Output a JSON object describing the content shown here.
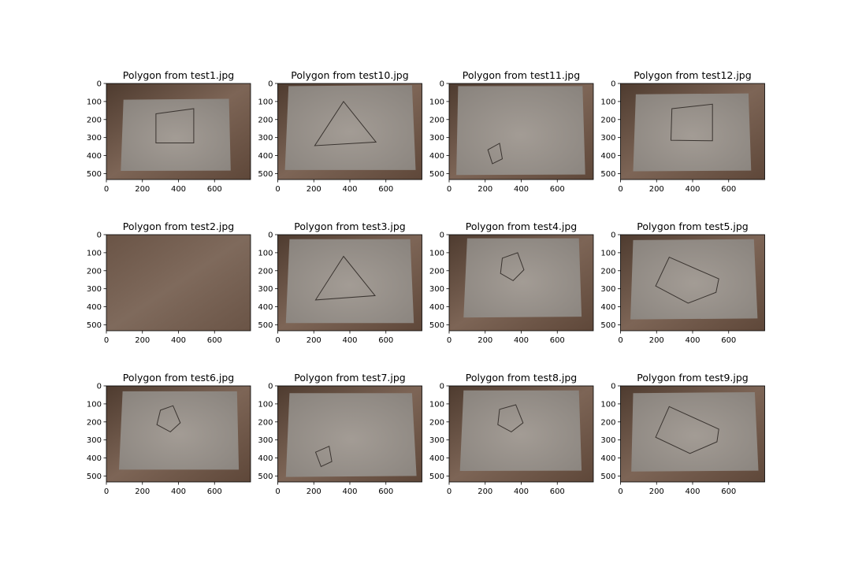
{
  "figure": {
    "layout": {
      "rows": 3,
      "cols": 4
    }
  },
  "axis": {
    "xticks": [
      "0",
      "200",
      "400",
      "600"
    ],
    "yticks": [
      "0",
      "100",
      "200",
      "300",
      "400",
      "500"
    ],
    "xlim": [
      0,
      800
    ],
    "ylim": [
      0,
      533
    ]
  },
  "colors": {
    "wood_dark": "#5a4436",
    "wood_mid": "#7a6253",
    "paper": "#9a938c",
    "paper_light": "#a49d96",
    "paper_dark": "#807a75",
    "polygon_line": "#3a3430"
  },
  "chart_data": [
    {
      "type": "image",
      "title": "Polygon from test1.jpg",
      "has_paper": true,
      "paper_corners": [
        [
          95,
          90
        ],
        [
          680,
          85
        ],
        [
          690,
          483
        ],
        [
          80,
          485
        ]
      ],
      "polygon": [
        [
          275,
          168
        ],
        [
          485,
          140
        ],
        [
          485,
          330
        ],
        [
          275,
          330
        ]
      ]
    },
    {
      "type": "image",
      "title": "Polygon from test10.jpg",
      "has_paper": true,
      "paper_corners": [
        [
          60,
          15
        ],
        [
          745,
          10
        ],
        [
          765,
          480
        ],
        [
          40,
          480
        ]
      ],
      "polygon": [
        [
          365,
          100
        ],
        [
          545,
          325
        ],
        [
          205,
          345
        ]
      ]
    },
    {
      "type": "image",
      "title": "Polygon from test11.jpg",
      "has_paper": true,
      "paper_corners": [
        [
          50,
          15
        ],
        [
          740,
          15
        ],
        [
          755,
          505
        ],
        [
          40,
          508
        ]
      ],
      "polygon": [
        [
          215,
          368
        ],
        [
          280,
          332
        ],
        [
          295,
          418
        ],
        [
          240,
          445
        ]
      ]
    },
    {
      "type": "image",
      "title": "Polygon from test12.jpg",
      "has_paper": true,
      "paper_corners": [
        [
          85,
          60
        ],
        [
          710,
          55
        ],
        [
          725,
          483
        ],
        [
          70,
          487
        ]
      ],
      "polygon": [
        [
          285,
          140
        ],
        [
          510,
          115
        ],
        [
          510,
          318
        ],
        [
          280,
          315
        ]
      ]
    },
    {
      "type": "image",
      "title": "Polygon from test2.jpg",
      "has_paper": false,
      "paper_corners": [],
      "polygon": []
    },
    {
      "type": "image",
      "title": "Polygon from test3.jpg",
      "has_paper": true,
      "paper_corners": [
        [
          65,
          25
        ],
        [
          735,
          25
        ],
        [
          755,
          490
        ],
        [
          45,
          490
        ]
      ],
      "polygon": [
        [
          365,
          120
        ],
        [
          540,
          338
        ],
        [
          210,
          362
        ]
      ]
    },
    {
      "type": "image",
      "title": "Polygon from test4.jpg",
      "has_paper": true,
      "paper_corners": [
        [
          100,
          20
        ],
        [
          720,
          20
        ],
        [
          735,
          455
        ],
        [
          80,
          460
        ]
      ],
      "polygon": [
        [
          295,
          130
        ],
        [
          380,
          100
        ],
        [
          415,
          195
        ],
        [
          355,
          255
        ],
        [
          285,
          215
        ]
      ]
    },
    {
      "type": "image",
      "title": "Polygon from test5.jpg",
      "has_paper": true,
      "paper_corners": [
        [
          70,
          30
        ],
        [
          740,
          25
        ],
        [
          760,
          465
        ],
        [
          55,
          470
        ]
      ],
      "polygon": [
        [
          270,
          125
        ],
        [
          545,
          245
        ],
        [
          530,
          320
        ],
        [
          375,
          380
        ],
        [
          195,
          285
        ]
      ]
    },
    {
      "type": "image",
      "title": "Polygon from test6.jpg",
      "has_paper": true,
      "paper_corners": [
        [
          90,
          30
        ],
        [
          725,
          30
        ],
        [
          735,
          465
        ],
        [
          70,
          465
        ]
      ],
      "polygon": [
        [
          300,
          135
        ],
        [
          370,
          110
        ],
        [
          410,
          205
        ],
        [
          355,
          255
        ],
        [
          280,
          215
        ]
      ]
    },
    {
      "type": "image",
      "title": "Polygon from test7.jpg",
      "has_paper": true,
      "paper_corners": [
        [
          65,
          40
        ],
        [
          745,
          40
        ],
        [
          770,
          500
        ],
        [
          45,
          505
        ]
      ],
      "polygon": [
        [
          210,
          368
        ],
        [
          285,
          335
        ],
        [
          300,
          420
        ],
        [
          240,
          448
        ]
      ]
    },
    {
      "type": "image",
      "title": "Polygon from test8.jpg",
      "has_paper": true,
      "paper_corners": [
        [
          80,
          25
        ],
        [
          720,
          25
        ],
        [
          735,
          470
        ],
        [
          60,
          472
        ]
      ],
      "polygon": [
        [
          280,
          130
        ],
        [
          370,
          105
        ],
        [
          410,
          205
        ],
        [
          345,
          255
        ],
        [
          270,
          215
        ]
      ]
    },
    {
      "type": "image",
      "title": "Polygon from test9.jpg",
      "has_paper": true,
      "paper_corners": [
        [
          70,
          40
        ],
        [
          745,
          35
        ],
        [
          765,
          470
        ],
        [
          60,
          475
        ]
      ],
      "polygon": [
        [
          270,
          115
        ],
        [
          545,
          240
        ],
        [
          535,
          310
        ],
        [
          385,
          375
        ],
        [
          195,
          285
        ]
      ]
    }
  ]
}
